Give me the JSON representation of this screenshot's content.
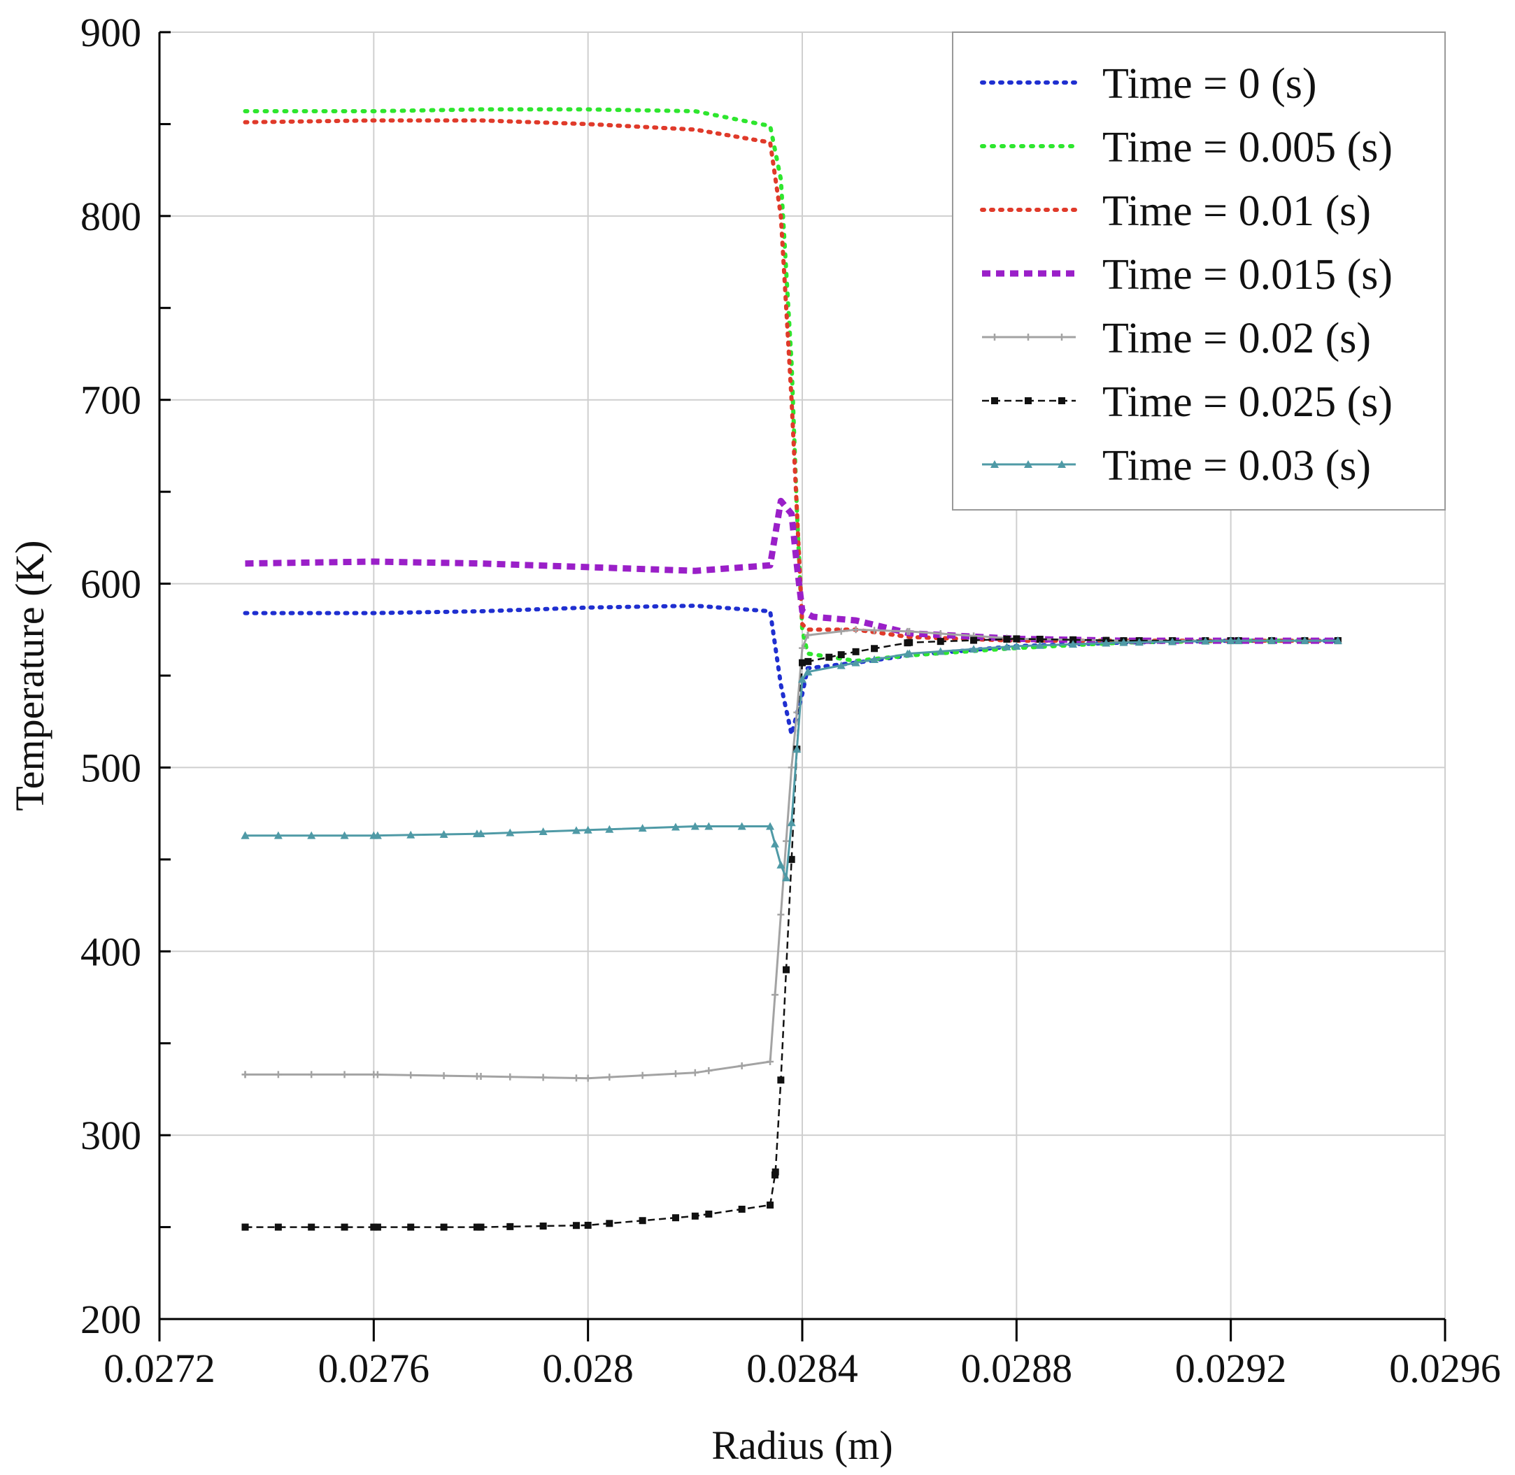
{
  "chart_data": {
    "type": "line",
    "title": "",
    "xlabel": "Radius (m)",
    "ylabel": "Temperature (K)",
    "xlim": [
      0.0272,
      0.0296
    ],
    "ylim": [
      200,
      900
    ],
    "xticks": [
      0.0272,
      0.0276,
      0.028,
      0.0284,
      0.0288,
      0.0292,
      0.0296
    ],
    "xtick_labels": [
      "0.0272",
      "0.0276",
      "0.028",
      "0.0284",
      "0.0288",
      "0.0292",
      "0.0296"
    ],
    "yticks": [
      200,
      300,
      400,
      500,
      600,
      700,
      800,
      900
    ],
    "ytick_labels": [
      "200",
      "300",
      "400",
      "500",
      "600",
      "700",
      "800",
      "900"
    ],
    "grid": true,
    "legend_position": "top-right",
    "series": [
      {
        "name": "Time = 0 (s)",
        "color": "#1f2fd0",
        "style": "dotted",
        "x": [
          0.02736,
          0.0276,
          0.0278,
          0.028,
          0.0282,
          0.02834,
          0.02836,
          0.02838,
          0.0284,
          0.02841,
          0.0285,
          0.0286,
          0.0288,
          0.029,
          0.0292,
          0.0294
        ],
        "y": [
          584,
          584,
          585,
          587,
          588,
          585,
          545,
          518,
          540,
          554,
          557,
          561,
          566,
          568,
          569,
          569
        ]
      },
      {
        "name": "Time = 0.005 (s)",
        "color": "#2ee62e",
        "style": "triangle-dotted",
        "x": [
          0.02736,
          0.0276,
          0.0278,
          0.028,
          0.0282,
          0.02834,
          0.02836,
          0.02838,
          0.02839,
          0.0284,
          0.02841,
          0.0285,
          0.0286,
          0.0288,
          0.029,
          0.0292,
          0.0294
        ],
        "y": [
          857,
          857,
          858,
          858,
          857,
          849,
          820,
          720,
          640,
          575,
          562,
          558,
          561,
          565,
          568,
          569,
          569
        ]
      },
      {
        "name": "Time = 0.01 (s)",
        "color": "#e03a2a",
        "style": "dotted",
        "x": [
          0.02736,
          0.0276,
          0.0278,
          0.028,
          0.0282,
          0.02834,
          0.02836,
          0.02838,
          0.02839,
          0.0284,
          0.02841,
          0.0285,
          0.0286,
          0.0288,
          0.029,
          0.0292,
          0.0294
        ],
        "y": [
          851,
          852,
          852,
          850,
          847,
          840,
          800,
          700,
          640,
          578,
          575,
          575,
          571,
          569,
          569,
          569,
          569
        ]
      },
      {
        "name": "Time = 0.015 (s)",
        "color": "#9a1fc8",
        "style": "dashed",
        "x": [
          0.02736,
          0.0276,
          0.0278,
          0.028,
          0.0282,
          0.02834,
          0.02836,
          0.02838,
          0.02839,
          0.0284,
          0.02842,
          0.0285,
          0.0286,
          0.0288,
          0.029,
          0.0292,
          0.0294
        ],
        "y": [
          611,
          612,
          611,
          609,
          607,
          610,
          645,
          638,
          610,
          585,
          582,
          580,
          573,
          570,
          569,
          569,
          569
        ]
      },
      {
        "name": "Time = 0.02 (s)",
        "color": "#a3a3a3",
        "style": "plus-solid",
        "x": [
          0.02736,
          0.0276,
          0.0278,
          0.028,
          0.0282,
          0.02834,
          0.02836,
          0.02837,
          0.02838,
          0.02839,
          0.0284,
          0.02841,
          0.0285,
          0.0286,
          0.0288,
          0.029,
          0.0292,
          0.0294
        ],
        "y": [
          333,
          333,
          332,
          331,
          334,
          340,
          420,
          460,
          500,
          530,
          565,
          572,
          575,
          574,
          570,
          569,
          569,
          569
        ]
      },
      {
        "name": "Time = 0.025 (s)",
        "color": "#111111",
        "style": "square-dashed",
        "x": [
          0.02736,
          0.0276,
          0.0278,
          0.028,
          0.0282,
          0.02834,
          0.02835,
          0.02836,
          0.02837,
          0.02838,
          0.02839,
          0.0284,
          0.02845,
          0.0285,
          0.0286,
          0.0288,
          0.029,
          0.0292,
          0.0294
        ],
        "y": [
          250,
          250,
          250,
          251,
          256,
          262,
          280,
          330,
          390,
          450,
          510,
          557,
          560,
          563,
          568,
          570,
          569,
          569,
          569
        ]
      },
      {
        "name": "Time = 0.03 (s)",
        "color": "#4f9aa6",
        "style": "triangle-solid",
        "x": [
          0.02736,
          0.0276,
          0.0278,
          0.028,
          0.0282,
          0.02834,
          0.02836,
          0.02837,
          0.02838,
          0.02839,
          0.0284,
          0.02841,
          0.0285,
          0.0286,
          0.0288,
          0.029,
          0.0292,
          0.0294
        ],
        "y": [
          463,
          463,
          464,
          466,
          468,
          468,
          447,
          440,
          470,
          510,
          548,
          552,
          557,
          562,
          566,
          568,
          569,
          569
        ]
      }
    ]
  }
}
